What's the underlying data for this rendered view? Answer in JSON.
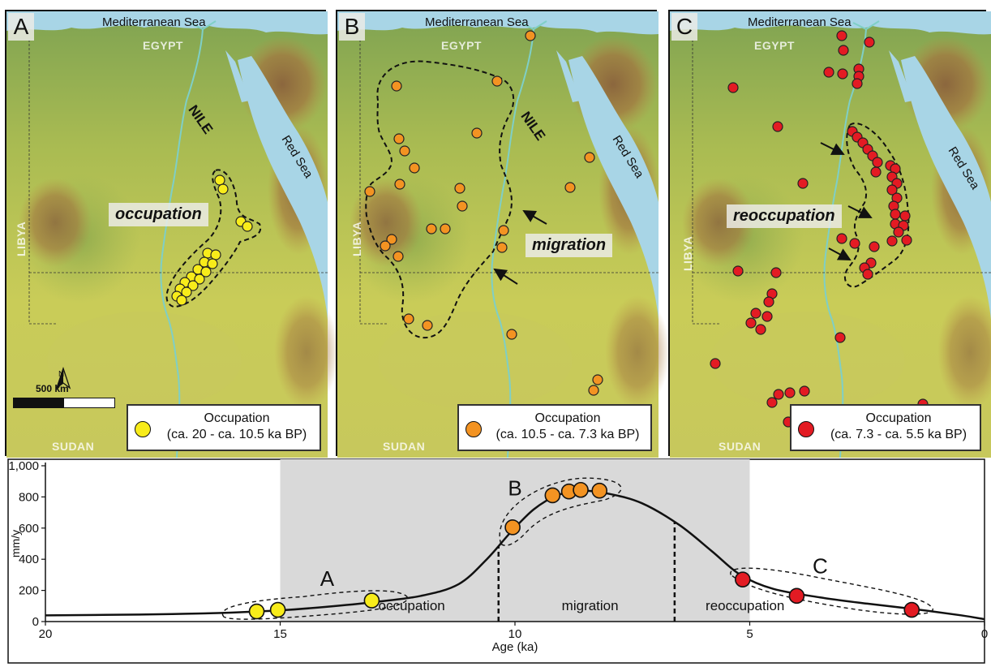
{
  "map_common": {
    "sea_label": "Mediterranean Sea",
    "egypt_label": "EGYPT",
    "libya_label": "LIBYA",
    "sudan_label": "SUDAN",
    "redsea_label": "Red Sea",
    "nile_label": "NILE"
  },
  "panels": [
    {
      "letter": "A",
      "phase_label": "occupation",
      "legend_title": "Occupation",
      "legend_range": "(ca. 20 - ca. 10.5 ka BP)",
      "dot_color": "#f8ec1a",
      "scale_label": "500 km",
      "north_label": "N"
    },
    {
      "letter": "B",
      "phase_label": "migration",
      "legend_title": "Occupation",
      "legend_range": "(ca. 10.5 - ca. 7.3 ka BP)",
      "dot_color": "#f39322"
    },
    {
      "letter": "C",
      "phase_label": "reoccupation",
      "legend_title": "Occupation",
      "legend_range": "(ca. 7.3 - ca. 5.5 ka BP)",
      "dot_color": "#e31b23"
    }
  ],
  "chart_data": {
    "type": "line",
    "xlabel": "Age (ka)",
    "ylabel": "mm/y",
    "xlim": [
      20,
      0
    ],
    "ylim": [
      0,
      1000
    ],
    "x_ticks": [
      20,
      15,
      10,
      5,
      0
    ],
    "y_ticks": [
      0,
      200,
      400,
      600,
      800,
      1000
    ],
    "y_tick_labels": [
      "0",
      "200",
      "400",
      "600",
      "800",
      "1,000"
    ],
    "shaded_interval": [
      15,
      5
    ],
    "curve": [
      {
        "x": 20,
        "y": 40
      },
      {
        "x": 18,
        "y": 45
      },
      {
        "x": 17,
        "y": 50
      },
      {
        "x": 16,
        "y": 58
      },
      {
        "x": 15,
        "y": 72
      },
      {
        "x": 14,
        "y": 95
      },
      {
        "x": 13,
        "y": 125
      },
      {
        "x": 12,
        "y": 165
      },
      {
        "x": 11.2,
        "y": 240
      },
      {
        "x": 10.6,
        "y": 400
      },
      {
        "x": 10.1,
        "y": 570
      },
      {
        "x": 9.6,
        "y": 720
      },
      {
        "x": 9.1,
        "y": 810
      },
      {
        "x": 8.6,
        "y": 840
      },
      {
        "x": 8.0,
        "y": 820
      },
      {
        "x": 7.3,
        "y": 760
      },
      {
        "x": 6.5,
        "y": 620
      },
      {
        "x": 5.8,
        "y": 450
      },
      {
        "x": 5.2,
        "y": 300
      },
      {
        "x": 4.5,
        "y": 210
      },
      {
        "x": 3.5,
        "y": 155
      },
      {
        "x": 2.5,
        "y": 115
      },
      {
        "x": 1.5,
        "y": 80
      },
      {
        "x": 0.5,
        "y": 40
      },
      {
        "x": 0,
        "y": 15
      }
    ],
    "dashed_dividers": [
      {
        "x": 10.35,
        "label": "occupation"
      },
      {
        "x": 6.6,
        "label": "migration"
      }
    ],
    "interval_labels": [
      {
        "x": 12.2,
        "text": "occupation"
      },
      {
        "x": 8.4,
        "text": "migration"
      },
      {
        "x": 5.1,
        "text": "reoccupation"
      }
    ],
    "series": [
      {
        "phase": "A",
        "color": "#f8ec1a",
        "points": [
          {
            "x": 15.5,
            "y": 65
          },
          {
            "x": 15.05,
            "y": 75
          },
          {
            "x": 13.05,
            "y": 135
          }
        ]
      },
      {
        "phase": "B",
        "color": "#f39322",
        "points": [
          {
            "x": 10.05,
            "y": 605
          },
          {
            "x": 9.2,
            "y": 810
          },
          {
            "x": 8.85,
            "y": 835
          },
          {
            "x": 8.6,
            "y": 845
          },
          {
            "x": 8.2,
            "y": 840
          }
        ]
      },
      {
        "phase": "C",
        "color": "#e31b23",
        "points": [
          {
            "x": 5.15,
            "y": 270
          },
          {
            "x": 4.0,
            "y": 165
          },
          {
            "x": 1.55,
            "y": 75
          }
        ]
      }
    ],
    "group_labels": [
      "A",
      "B",
      "C"
    ]
  }
}
